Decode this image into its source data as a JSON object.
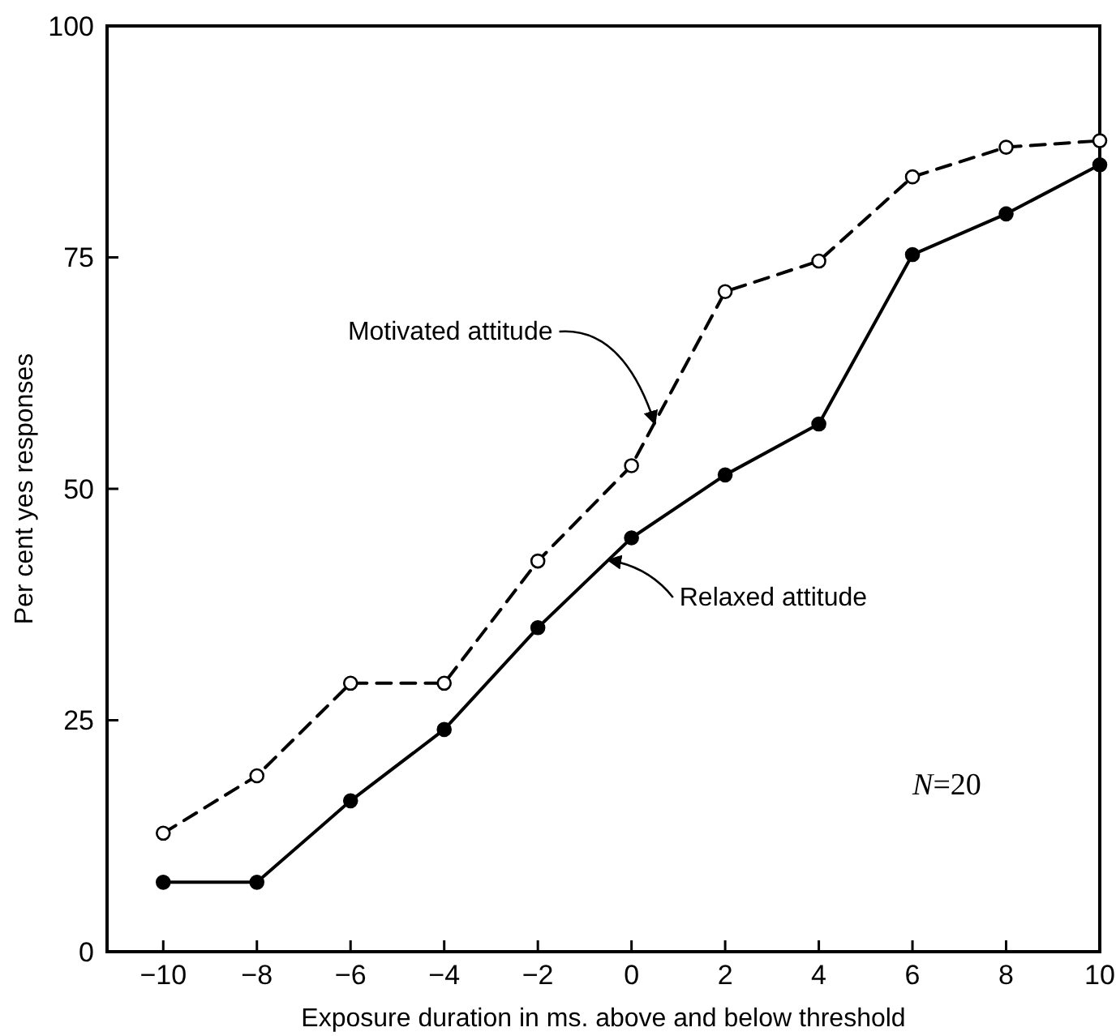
{
  "chart_data": {
    "type": "line",
    "xlabel": "Exposure duration in ms. above and below threshold",
    "ylabel": "Per cent yes responses",
    "x": [
      -10,
      -8,
      -6,
      -4,
      -2,
      0,
      2,
      4,
      6,
      8,
      10
    ],
    "series": [
      {
        "color": "#000000",
        "line_style": "dashed",
        "marker": "circle",
        "values": [
          12.8,
          19,
          29,
          29,
          42.2,
          52.5,
          71.3,
          74.6,
          83.7,
          86.9,
          87.6
        ]
      },
      {
        "color": "#000000",
        "line_style": "solid",
        "marker": "circle",
        "values": [
          7.5,
          7.5,
          16.3,
          24,
          35,
          44.7,
          51.5,
          57,
          75.3,
          79.7,
          85
        ]
      }
    ],
    "xlim": [
      -11.2,
      10
    ],
    "ylim": [
      0,
      100
    ],
    "xticks": [
      {
        "value": -10,
        "label": "−10"
      },
      {
        "value": -8,
        "label": "−8"
      },
      {
        "value": -6,
        "label": "−6"
      },
      {
        "value": -4,
        "label": "−4"
      },
      {
        "value": -2,
        "label": "−2"
      },
      0,
      2,
      4,
      6,
      8,
      10
    ],
    "yticks": [
      0,
      25,
      50,
      75,
      100
    ],
    "grid": false,
    "annotations": [
      {
        "text": "Motivated attitude",
        "x": 0.5,
        "y": 57
      },
      {
        "text": "Relaxed attitude",
        "x": -0.5,
        "y": 42.3
      },
      "N=20"
    ]
  }
}
